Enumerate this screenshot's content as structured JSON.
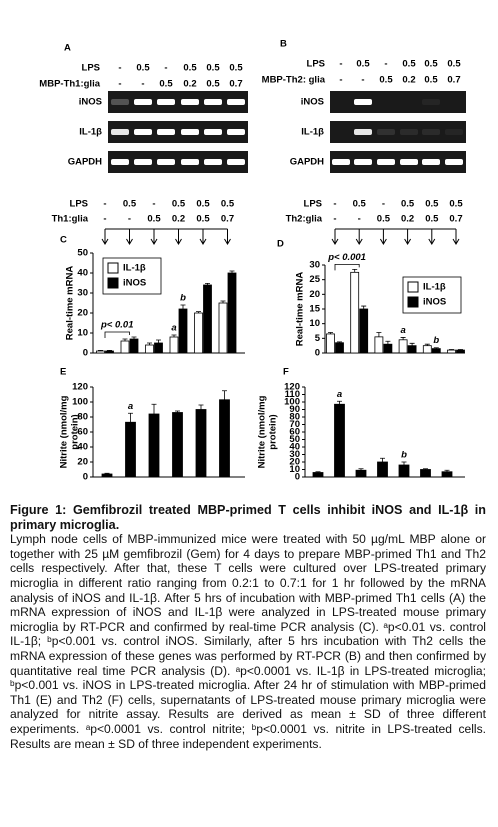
{
  "gels": [
    {
      "letter": "A",
      "rows": [
        {
          "label": "LPS",
          "values": [
            "-",
            "0.5",
            "-",
            "0.5",
            "0.5",
            "0.5"
          ]
        },
        {
          "label": "MBP-Th1:glia",
          "values": [
            "-",
            "-",
            "0.5",
            "0.2",
            "0.5",
            "0.7"
          ]
        }
      ],
      "bands": [
        "iNOS",
        "IL-1β",
        "GAPDH"
      ]
    },
    {
      "letter": "B",
      "rows": [
        {
          "label": "LPS",
          "values": [
            "-",
            "0.5",
            "-",
            "0.5",
            "0.5",
            "0.5"
          ]
        },
        {
          "label": "MBP-Th2: glia",
          "values": [
            "-",
            "-",
            "0.5",
            "0.2",
            "0.5",
            "0.7"
          ]
        }
      ],
      "bands": [
        "iNOS",
        "IL-1β",
        "GAPDH"
      ]
    }
  ],
  "treatment_headers": [
    {
      "rows": [
        {
          "label": "LPS",
          "values": [
            "-",
            "0.5",
            "-",
            "0.5",
            "0.5",
            "0.5"
          ]
        },
        {
          "label": "Th1:glia",
          "values": [
            "-",
            "-",
            "0.5",
            "0.2",
            "0.5",
            "0.7"
          ]
        }
      ]
    },
    {
      "rows": [
        {
          "label": "LPS",
          "values": [
            "-",
            "0.5",
            "-",
            "0.5",
            "0.5",
            "0.5"
          ]
        },
        {
          "label": "Th2:glia",
          "values": [
            "-",
            "-",
            "0.5",
            "0.2",
            "0.5",
            "0.7"
          ]
        }
      ]
    }
  ],
  "chart_data": [
    {
      "type": "bar",
      "letter": "C",
      "y_label": [
        "Real-time mRNA"
      ],
      "ylim": [
        0,
        50
      ],
      "yticks": [
        0,
        10,
        20,
        30,
        40,
        50
      ],
      "legend": "top-left",
      "bracket_label": "p< 0.01",
      "series": [
        {
          "name": "IL-1β",
          "color": "#ffffff",
          "values": [
            1,
            6,
            4,
            8,
            20,
            25
          ],
          "errors": [
            0.3,
            1,
            1,
            1,
            0.7,
            1
          ],
          "annotations": [
            null,
            null,
            null,
            "a",
            null,
            null
          ]
        },
        {
          "name": "iNOS",
          "color": "#000000",
          "values": [
            1,
            7,
            5,
            22,
            34,
            40
          ],
          "errors": [
            0.3,
            1,
            1.5,
            2,
            0.8,
            1
          ],
          "annotations": [
            null,
            null,
            null,
            "b",
            null,
            null
          ]
        }
      ]
    },
    {
      "type": "bar",
      "letter": "D",
      "y_label": [
        "Real-time mRNA"
      ],
      "ylim": [
        0,
        30
      ],
      "yticks": [
        0,
        5,
        10,
        15,
        20,
        25,
        30
      ],
      "legend": "right",
      "bracket_label": "p< 0.001",
      "series": [
        {
          "name": "IL-1β",
          "color": "#ffffff",
          "values": [
            6.5,
            27.5,
            5.5,
            4.5,
            2.5,
            1
          ],
          "errors": [
            0.5,
            1,
            1.5,
            0.8,
            0.5,
            0.2
          ],
          "annotations": [
            null,
            null,
            null,
            "a",
            null,
            null
          ]
        },
        {
          "name": "iNOS",
          "color": "#000000",
          "values": [
            3.5,
            15,
            3,
            2.5,
            1.5,
            1
          ],
          "errors": [
            0.3,
            1,
            1,
            0.8,
            0.3,
            0.2
          ],
          "annotations": [
            null,
            null,
            null,
            null,
            "b",
            null
          ]
        }
      ]
    },
    {
      "type": "bar",
      "letter": "E",
      "y_label": [
        "Nitrite (nmol/mg",
        "protein)"
      ],
      "ylim": [
        0,
        120
      ],
      "yticks": [
        0,
        20,
        40,
        60,
        80,
        100,
        120
      ],
      "color": "#000000",
      "values": [
        4,
        73,
        84,
        86,
        90,
        103
      ],
      "errors": [
        1,
        12,
        13,
        2,
        6,
        12
      ],
      "annotations": [
        null,
        "a",
        null,
        null,
        null,
        null
      ]
    },
    {
      "type": "bar",
      "letter": "F",
      "y_label": [
        "Nitrite (nmol/mg",
        "protein)"
      ],
      "ylim": [
        0,
        120
      ],
      "yticks": [
        0,
        10,
        20,
        30,
        40,
        50,
        60,
        70,
        80,
        90,
        100,
        110,
        120
      ],
      "color": "#000000",
      "values": [
        6,
        97,
        9,
        20,
        16,
        10,
        7
      ],
      "errors": [
        1,
        4,
        2,
        5,
        4,
        1,
        2
      ],
      "annotations": [
        null,
        "a",
        null,
        null,
        "b",
        null,
        null
      ]
    }
  ],
  "caption": {
    "title": "Figure 1: Gemfibrozil treated MBP-primed T cells inhibit iNOS and IL-1β in primary microglia.",
    "body": "Lymph node cells of MBP-immunized mice were treated with 50 µg/mL MBP alone or together with 25 µM gemfibrozil (Gem) for 4 days to prepare MBP-primed Th1 and Th2 cells respectively. After that, these T cells were cultured over LPS-treated primary microglia in different ratio ranging from 0.2:1 to 0.7:1 for 1 hr followed by the mRNA analysis of iNOS and IL-1β. After 5 hrs of incubation with MBP-primed Th1 cells (A) the mRNA expression of iNOS and IL-1β were analyzed in LPS-treated mouse primary microglia by RT-PCR and confirmed by real-time PCR analysis (C). ᵃp<0.01 vs. control IL-1β; ᵇp<0.001 vs. control iNOS. Similarly, after 5 hrs incubation with Th2 cells the mRNA expression of these genes was performed by RT-PCR (B) and then confirmed by quantitative real time PCR analysis (D). ᵃp<0.0001 vs. IL-1β in LPS-treated microglia; ᵇp<0.001 vs. iNOS in LPS-treated microglia. After 24 hr of stimulation with MBP-primed Th1 (E) and Th2 (F) cells, supernatants of LPS-treated mouse primary microglia were analyzed for nitrite assay. Results are derived as mean ± SD of three different experiments. ᵃp<0.0001 vs. control nitrite; ᵇp<0.0001 vs. nitrite in LPS-treated cells. Results are mean ± SD of three independent experiments."
  }
}
